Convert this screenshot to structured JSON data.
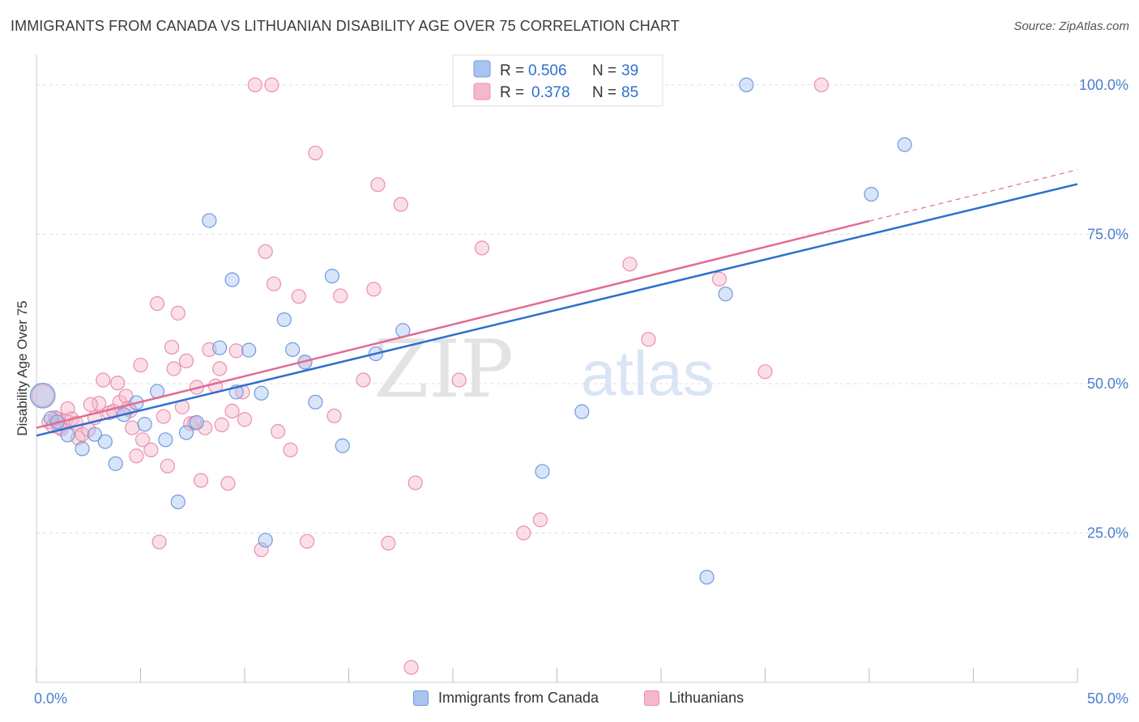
{
  "title": "IMMIGRANTS FROM CANADA VS LITHUANIAN DISABILITY AGE OVER 75 CORRELATION CHART",
  "source": "Source: ZipAtlas.com",
  "watermark": {
    "zip": "ZIP",
    "atlas": "atlas"
  },
  "colors": {
    "blue_fill": "#a9c4ef",
    "blue_stroke": "#6f9be0",
    "blue_line": "#2e6fcf",
    "pink_fill": "#f5b7cb",
    "pink_stroke": "#ec8fad",
    "pink_line": "#e26b95",
    "tick_text": "#4a7fd0",
    "grid": "#dddddd"
  },
  "legend_box": {
    "rows": [
      {
        "r_label": "R = ",
        "r_value": "0.506",
        "n_label": "N = ",
        "n_value": "39"
      },
      {
        "r_label": "R = ",
        "r_value": "0.378",
        "n_label": "N = ",
        "n_value": "85"
      }
    ]
  },
  "chart_data": {
    "type": "scatter",
    "title": "IMMIGRANTS FROM CANADA VS LITHUANIAN DISABILITY AGE OVER 75 CORRELATION CHART",
    "xlabel": "",
    "ylabel": "Disability Age Over 75",
    "xlim": [
      0,
      50
    ],
    "ylim": [
      0,
      105
    ],
    "x_tick_labels": [
      "0.0%",
      "50.0%"
    ],
    "y_ticks": [
      25,
      50,
      75,
      100
    ],
    "y_tick_labels": [
      "25.0%",
      "50.0%",
      "75.0%",
      "100.0%"
    ],
    "grid": "horizontal dashed",
    "legend_position": "top-center",
    "series": [
      {
        "name": "Immigrants from Canada",
        "color": "#a9c4ef",
        "R": 0.506,
        "N": 39,
        "trend": {
          "x": [
            0,
            50
          ],
          "y": [
            41.3,
            83.4
          ]
        },
        "points": [
          [
            0.3,
            48,
            1.8
          ],
          [
            0.7,
            44.2,
            1
          ],
          [
            1.5,
            41.4,
            1
          ],
          [
            2.2,
            39.1,
            1
          ],
          [
            2.8,
            41.5,
            1
          ],
          [
            3.3,
            40.3,
            1
          ],
          [
            3.8,
            36.6,
            1
          ],
          [
            4.2,
            44.8,
            1
          ],
          [
            4.8,
            46.8,
            1
          ],
          [
            5.2,
            43.2,
            1
          ],
          [
            5.8,
            48.7,
            1
          ],
          [
            6.2,
            40.6,
            1
          ],
          [
            6.8,
            30.2,
            1
          ],
          [
            7.2,
            41.8,
            1
          ],
          [
            7.7,
            43.5,
            1
          ],
          [
            8.3,
            77.3,
            1
          ],
          [
            8.8,
            56,
            1
          ],
          [
            9.4,
            67.4,
            1
          ],
          [
            9.6,
            48.6,
            1
          ],
          [
            10.2,
            55.6,
            1
          ],
          [
            10.8,
            48.4,
            1
          ],
          [
            11.0,
            23.8,
            1
          ],
          [
            11.9,
            60.7,
            1
          ],
          [
            12.3,
            55.7,
            1
          ],
          [
            12.9,
            53.6,
            1
          ],
          [
            13.4,
            46.9,
            1
          ],
          [
            14.2,
            68,
            1
          ],
          [
            14.7,
            39.6,
            1
          ],
          [
            16.3,
            55,
            1
          ],
          [
            17.6,
            58.9,
            1
          ],
          [
            20.8,
            100,
            1
          ],
          [
            24.3,
            35.3,
            1
          ],
          [
            26.2,
            45.3,
            1
          ],
          [
            32.2,
            17.6,
            1
          ],
          [
            33.1,
            65,
            1
          ],
          [
            34.1,
            100,
            1
          ],
          [
            40.1,
            81.7,
            1
          ],
          [
            41.7,
            90,
            1
          ],
          [
            1.0,
            43.6,
            1
          ]
        ]
      },
      {
        "name": "Lithuanians",
        "color": "#f5b7cb",
        "R": 0.378,
        "N": 85,
        "trend": {
          "x": [
            0,
            40
          ],
          "y": [
            42.6,
            77.2
          ]
        },
        "trend_dashed": {
          "x": [
            40,
            50
          ],
          "y": [
            77.2,
            85.8
          ]
        },
        "points": [
          [
            0.3,
            48,
            1.6
          ],
          [
            0.6,
            43.6,
            1
          ],
          [
            0.8,
            42.9,
            1
          ],
          [
            1.0,
            44.1,
            1
          ],
          [
            1.2,
            42.4,
            1
          ],
          [
            1.4,
            43.8,
            1
          ],
          [
            1.5,
            45.8,
            1
          ],
          [
            1.7,
            44.1,
            1
          ],
          [
            1.9,
            43.4,
            1
          ],
          [
            2.0,
            40.9,
            1
          ],
          [
            2.2,
            41.5,
            1
          ],
          [
            2.5,
            42.3,
            1
          ],
          [
            2.8,
            44.3,
            1
          ],
          [
            3.0,
            46.7,
            1
          ],
          [
            3.2,
            50.6,
            1
          ],
          [
            3.5,
            45.1,
            1
          ],
          [
            3.7,
            45.4,
            1
          ],
          [
            3.9,
            50.1,
            1
          ],
          [
            4.0,
            46.9,
            1
          ],
          [
            4.3,
            47.9,
            1
          ],
          [
            4.5,
            45.5,
            1
          ],
          [
            4.6,
            42.6,
            1
          ],
          [
            4.8,
            37.9,
            1
          ],
          [
            5.0,
            53.1,
            1
          ],
          [
            5.1,
            40.6,
            1
          ],
          [
            5.5,
            38.9,
            1
          ],
          [
            5.8,
            63.4,
            1
          ],
          [
            5.9,
            23.5,
            1
          ],
          [
            6.1,
            44.5,
            1
          ],
          [
            6.3,
            36.2,
            1
          ],
          [
            6.5,
            56.1,
            1
          ],
          [
            6.6,
            52.5,
            1
          ],
          [
            6.8,
            61.8,
            1
          ],
          [
            7.0,
            46.1,
            1
          ],
          [
            7.2,
            53.8,
            1
          ],
          [
            7.4,
            43.3,
            1
          ],
          [
            7.7,
            49.4,
            1
          ],
          [
            7.9,
            33.8,
            1
          ],
          [
            8.1,
            42.6,
            1
          ],
          [
            8.3,
            55.7,
            1
          ],
          [
            8.6,
            49.6,
            1
          ],
          [
            8.8,
            52.5,
            1
          ],
          [
            8.9,
            43.1,
            1
          ],
          [
            9.2,
            33.3,
            1
          ],
          [
            9.4,
            45.4,
            1
          ],
          [
            9.6,
            55.5,
            1
          ],
          [
            10.0,
            44,
            1
          ],
          [
            10.5,
            100,
            1
          ],
          [
            10.8,
            22.2,
            1
          ],
          [
            11.0,
            72.1,
            1
          ],
          [
            11.4,
            66.7,
            1
          ],
          [
            11.6,
            42,
            1
          ],
          [
            12.2,
            38.9,
            1
          ],
          [
            12.6,
            64.6,
            1
          ],
          [
            12.9,
            53.6,
            1
          ],
          [
            13.0,
            23.6,
            1
          ],
          [
            13.4,
            88.6,
            1
          ],
          [
            14.3,
            44.6,
            1
          ],
          [
            14.6,
            64.7,
            1
          ],
          [
            15.7,
            50.6,
            1
          ],
          [
            16.2,
            65.8,
            1
          ],
          [
            16.4,
            83.3,
            1
          ],
          [
            16.9,
            23.3,
            1
          ],
          [
            17.5,
            80,
            1
          ],
          [
            18.2,
            33.4,
            1
          ],
          [
            18.0,
            2.5,
            1
          ],
          [
            20.3,
            50.6,
            1
          ],
          [
            20.9,
            100,
            1
          ],
          [
            21.4,
            72.7,
            1
          ],
          [
            21.8,
            100,
            1
          ],
          [
            22.2,
            100,
            1
          ],
          [
            23.4,
            25,
            1
          ],
          [
            24.2,
            27.2,
            1
          ],
          [
            28.5,
            70,
            1
          ],
          [
            29.4,
            57.4,
            1
          ],
          [
            32.8,
            67.5,
            1
          ],
          [
            35.0,
            52,
            1
          ],
          [
            37.7,
            100,
            1
          ],
          [
            1.1,
            42.7,
            1
          ],
          [
            2.6,
            46.5,
            1
          ],
          [
            4.4,
            45.9,
            1
          ],
          [
            7.6,
            43.4,
            1
          ],
          [
            9.9,
            48.6,
            1
          ],
          [
            11.3,
            100,
            1
          ],
          [
            0.9,
            44.3,
            1
          ]
        ]
      }
    ]
  }
}
